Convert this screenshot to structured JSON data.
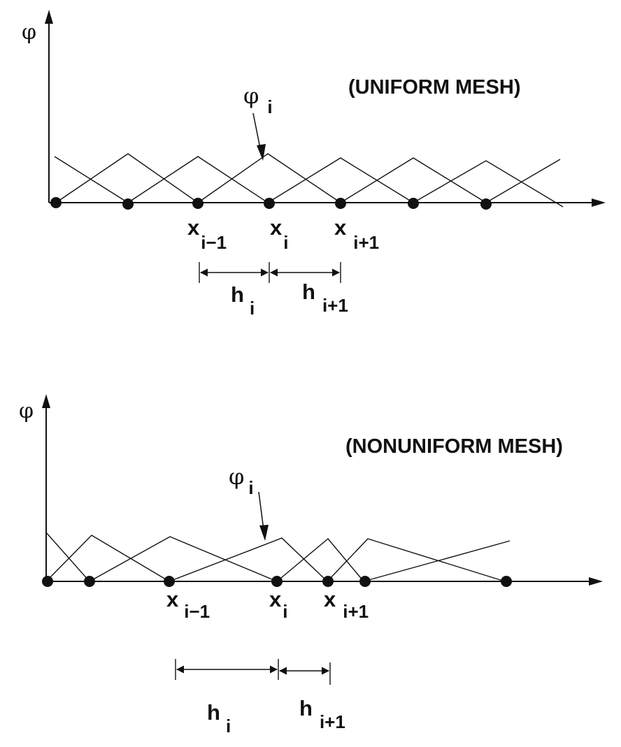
{
  "panels": [
    {
      "id": "uniform",
      "title": "(UNIFORM MESH)",
      "axis_symbol": "φ",
      "basis_label": {
        "symbol": "φ",
        "sub": "i"
      },
      "node_labels": [
        {
          "main": "x",
          "sub": "i−1"
        },
        {
          "main": "x",
          "sub": "i"
        },
        {
          "main": "x",
          "sub": "i+1"
        }
      ],
      "spacing_labels": [
        {
          "main": "h",
          "sub": "i"
        },
        {
          "main": "h",
          "sub": "i+1"
        }
      ]
    },
    {
      "id": "nonuniform",
      "title": "(NONUNIFORM MESH)",
      "axis_symbol": "φ",
      "basis_label": {
        "symbol": "φ",
        "sub": "i"
      },
      "node_labels": [
        {
          "main": "x",
          "sub": "i−1"
        },
        {
          "main": "x",
          "sub": "i"
        },
        {
          "main": "x",
          "sub": "i+1"
        }
      ],
      "spacing_labels": [
        {
          "main": "h",
          "sub": "i"
        },
        {
          "main": "h",
          "sub": "i+1"
        }
      ]
    }
  ],
  "colors": {
    "ink": "#111111",
    "background": "#ffffff"
  }
}
